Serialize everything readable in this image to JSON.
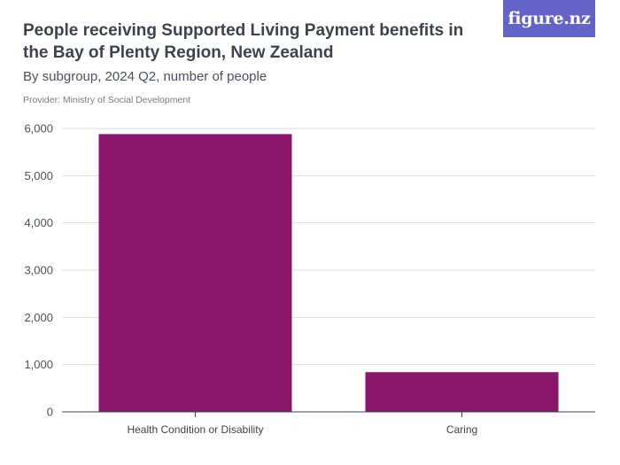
{
  "logo": {
    "text": "figure.nz"
  },
  "chart_data": {
    "type": "bar",
    "title": "People receiving Supported Living Payment benefits in the Bay of Plenty Region, New Zealand",
    "subtitle": "By subgroup, 2024 Q2, number of people",
    "provider": "Provider: Ministry of Social Development",
    "categories": [
      "Health Condition or Disability",
      "Caring"
    ],
    "values": [
      5880,
      840
    ],
    "ylim": [
      0,
      6000
    ],
    "yticks": [
      0,
      1000,
      2000,
      3000,
      4000,
      5000,
      6000
    ],
    "ytick_labels": [
      "0",
      "1,000",
      "2,000",
      "3,000",
      "4,000",
      "5,000",
      "6,000"
    ],
    "grid": true,
    "bar_color": "#8a166b"
  }
}
